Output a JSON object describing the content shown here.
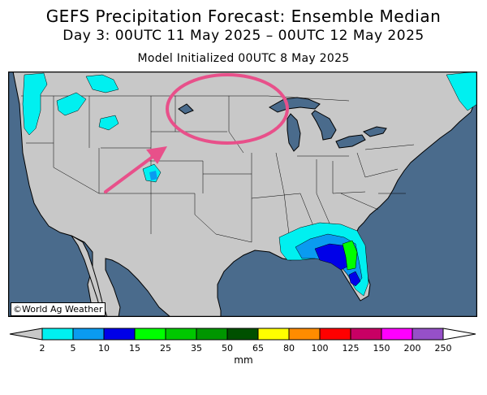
{
  "header": {
    "title": "GEFS Precipitation Forecast: Ensemble Median",
    "period": "Day 3: 00UTC 11 May 2025 – 00UTC 12 May 2025",
    "initialized": "Model Initialized 00UTC 8 May 2025"
  },
  "map": {
    "credit": "©World Ag Weather",
    "ocean_color": "#4a6b8c",
    "land_color": "#c8c8c8",
    "annotation_color": "#e8508a"
  },
  "legend": {
    "unit": "mm",
    "ticks": [
      "2",
      "5",
      "10",
      "15",
      "25",
      "35",
      "50",
      "65",
      "80",
      "100",
      "125",
      "150",
      "200",
      "250"
    ],
    "colors": [
      "#00f0f0",
      "#0a9bf0",
      "#0000e8",
      "#00ff00",
      "#00c800",
      "#009600",
      "#005000",
      "#ffff00",
      "#ff8c00",
      "#ff0000",
      "#c80064",
      "#ff00ff",
      "#9650c8"
    ],
    "under_color": "#c8c8c8",
    "over_color": "#ffffff"
  }
}
